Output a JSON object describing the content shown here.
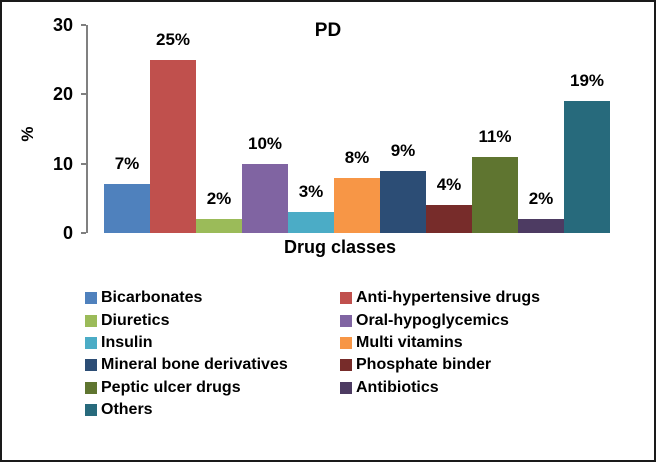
{
  "frame": {
    "background": "#ffffff",
    "border_color": "#1a1a1a"
  },
  "chart_data": {
    "type": "bar",
    "title": "PD",
    "xlabel": "Drug classes",
    "ylabel": "%",
    "ylim": [
      0,
      30
    ],
    "yticks": [
      0,
      10,
      20,
      30
    ],
    "grid": false,
    "legend_position": "bottom-two-columns",
    "axis_color": "#808080",
    "text_color": "#000000",
    "categories": [
      "Bicarbonates",
      "Anti-hypertensive drugs",
      "Diuretics",
      "Oral-hypoglycemics",
      "Insulin",
      "Multi vitamins",
      "Mineral bone derivatives",
      "Phosphate binder",
      "Peptic ulcer drugs",
      "Antibiotics",
      "Others"
    ],
    "values": [
      7,
      25,
      2,
      10,
      3,
      8,
      9,
      4,
      11,
      2,
      19
    ],
    "value_labels": [
      "7%",
      "25%",
      "2%",
      "10%",
      "3%",
      "8%",
      "9%",
      "4%",
      "11%",
      "2%",
      "19%"
    ],
    "colors": [
      "#4F81BD",
      "#C0504D",
      "#9BBB59",
      "#8064A2",
      "#4BACC6",
      "#F79646",
      "#2C4D75",
      "#772C2A",
      "#5F7530",
      "#4D3B62",
      "#276A7C"
    ],
    "legend_column_indices": [
      [
        0,
        2,
        4,
        6,
        8,
        10
      ],
      [
        1,
        3,
        5,
        7,
        9
      ]
    ]
  }
}
